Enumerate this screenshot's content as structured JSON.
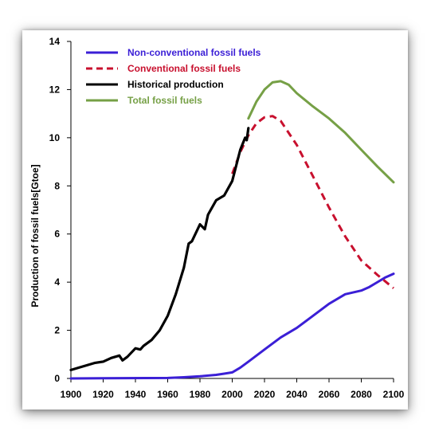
{
  "chart_data": {
    "type": "line",
    "title": "",
    "xlabel": "",
    "ylabel": "Production of fossil fuels[Gtoe]",
    "xlim": [
      1900,
      2100
    ],
    "ylim": [
      0,
      14
    ],
    "xticks": [
      1900,
      1920,
      1940,
      1960,
      1980,
      2000,
      2020,
      2040,
      2060,
      2080,
      2100
    ],
    "yticks": [
      0,
      2,
      4,
      6,
      8,
      10,
      12,
      14
    ],
    "grid": false,
    "legend_position": "top-left",
    "series": [
      {
        "name": "Non-conventional fossil fuels",
        "color": "#3b1fd6",
        "dash": "solid",
        "x": [
          1900,
          1960,
          1970,
          1980,
          1990,
          1995,
          2000,
          2005,
          2010,
          2020,
          2030,
          2040,
          2050,
          2060,
          2070,
          2080,
          2085,
          2090,
          2095,
          2100
        ],
        "y": [
          0,
          0.02,
          0.05,
          0.09,
          0.15,
          0.2,
          0.25,
          0.45,
          0.7,
          1.2,
          1.7,
          2.1,
          2.6,
          3.1,
          3.5,
          3.65,
          3.8,
          4.0,
          4.2,
          4.35
        ]
      },
      {
        "name": "Conventional fossil fuels",
        "color": "#c8102e",
        "dash": "dashed",
        "x": [
          2000,
          2005,
          2010,
          2015,
          2020,
          2025,
          2030,
          2040,
          2050,
          2060,
          2070,
          2080,
          2090,
          2100
        ],
        "y": [
          8.5,
          9.4,
          10.1,
          10.6,
          10.85,
          10.9,
          10.7,
          9.7,
          8.4,
          7.1,
          5.9,
          4.9,
          4.3,
          3.75
        ]
      },
      {
        "name": "Historical production",
        "color": "#000000",
        "dash": "solid",
        "x": [
          1900,
          1905,
          1910,
          1915,
          1920,
          1925,
          1930,
          1932,
          1935,
          1940,
          1943,
          1945,
          1950,
          1955,
          1960,
          1965,
          1970,
          1973,
          1975,
          1980,
          1983,
          1985,
          1990,
          1995,
          2000,
          2005,
          2008,
          2009,
          2010
        ],
        "y": [
          0.35,
          0.45,
          0.55,
          0.65,
          0.7,
          0.85,
          0.95,
          0.75,
          0.9,
          1.25,
          1.2,
          1.35,
          1.6,
          2.0,
          2.6,
          3.5,
          4.6,
          5.6,
          5.7,
          6.4,
          6.2,
          6.8,
          7.4,
          7.6,
          8.2,
          9.5,
          10.0,
          9.9,
          10.4
        ]
      },
      {
        "name": "Total fossil fuels",
        "color": "#76a046",
        "dash": "solid",
        "x": [
          2010,
          2015,
          2020,
          2025,
          2030,
          2035,
          2040,
          2050,
          2060,
          2070,
          2080,
          2090,
          2100
        ],
        "y": [
          10.8,
          11.5,
          12.0,
          12.3,
          12.35,
          12.2,
          11.85,
          11.3,
          10.8,
          10.2,
          9.5,
          8.8,
          8.15
        ]
      }
    ]
  }
}
